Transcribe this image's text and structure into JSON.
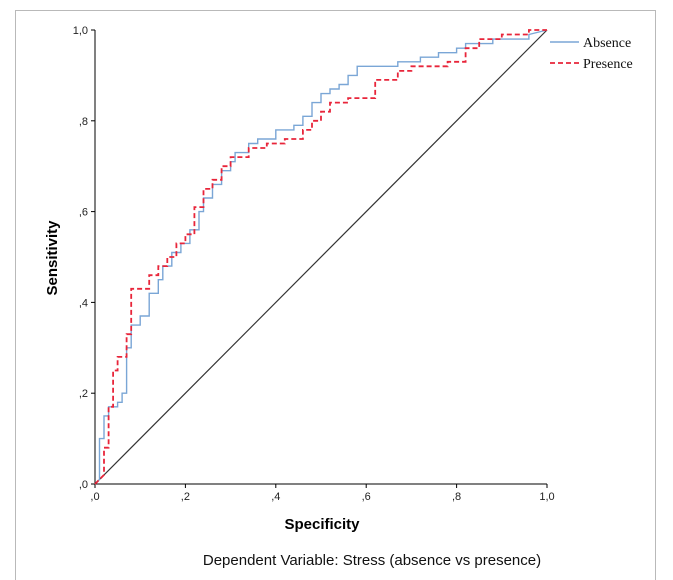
{
  "chart_data": {
    "type": "line",
    "title": "",
    "xlabel": "Specificity",
    "ylabel": "Sensitivity",
    "caption": "Dependent Variable: Stress (absence vs presence)",
    "xlim": [
      0,
      1
    ],
    "ylim": [
      0,
      1
    ],
    "xtick_labels": [
      ",0",
      ",2",
      ",4",
      ",6",
      ",8",
      "1,0"
    ],
    "ytick_labels": [
      ",0",
      ",2",
      ",4",
      ",6",
      ",8",
      "1,0"
    ],
    "tick_values": [
      0,
      0.2,
      0.4,
      0.6,
      0.8,
      1.0
    ],
    "legend_position": "top-right",
    "grid": false,
    "series": [
      {
        "name": "Absence",
        "color": "#7aa6d6",
        "style": "solid",
        "points": [
          [
            0,
            0
          ],
          [
            0.01,
            0.01
          ],
          [
            0.01,
            0.1
          ],
          [
            0.02,
            0.1
          ],
          [
            0.02,
            0.15
          ],
          [
            0.03,
            0.15
          ],
          [
            0.03,
            0.17
          ],
          [
            0.05,
            0.17
          ],
          [
            0.05,
            0.18
          ],
          [
            0.06,
            0.18
          ],
          [
            0.06,
            0.2
          ],
          [
            0.07,
            0.2
          ],
          [
            0.07,
            0.3
          ],
          [
            0.08,
            0.3
          ],
          [
            0.08,
            0.35
          ],
          [
            0.1,
            0.35
          ],
          [
            0.1,
            0.37
          ],
          [
            0.12,
            0.37
          ],
          [
            0.12,
            0.42
          ],
          [
            0.14,
            0.42
          ],
          [
            0.14,
            0.45
          ],
          [
            0.15,
            0.45
          ],
          [
            0.15,
            0.48
          ],
          [
            0.17,
            0.48
          ],
          [
            0.17,
            0.51
          ],
          [
            0.19,
            0.51
          ],
          [
            0.19,
            0.53
          ],
          [
            0.21,
            0.53
          ],
          [
            0.21,
            0.56
          ],
          [
            0.23,
            0.56
          ],
          [
            0.23,
            0.6
          ],
          [
            0.24,
            0.6
          ],
          [
            0.24,
            0.63
          ],
          [
            0.26,
            0.63
          ],
          [
            0.26,
            0.66
          ],
          [
            0.28,
            0.66
          ],
          [
            0.28,
            0.69
          ],
          [
            0.3,
            0.69
          ],
          [
            0.3,
            0.71
          ],
          [
            0.31,
            0.71
          ],
          [
            0.31,
            0.73
          ],
          [
            0.34,
            0.73
          ],
          [
            0.34,
            0.75
          ],
          [
            0.36,
            0.75
          ],
          [
            0.36,
            0.76
          ],
          [
            0.4,
            0.76
          ],
          [
            0.4,
            0.78
          ],
          [
            0.44,
            0.78
          ],
          [
            0.44,
            0.79
          ],
          [
            0.46,
            0.79
          ],
          [
            0.46,
            0.81
          ],
          [
            0.48,
            0.81
          ],
          [
            0.48,
            0.84
          ],
          [
            0.5,
            0.84
          ],
          [
            0.5,
            0.86
          ],
          [
            0.52,
            0.86
          ],
          [
            0.52,
            0.87
          ],
          [
            0.54,
            0.87
          ],
          [
            0.54,
            0.88
          ],
          [
            0.56,
            0.88
          ],
          [
            0.56,
            0.9
          ],
          [
            0.58,
            0.9
          ],
          [
            0.58,
            0.92
          ],
          [
            0.67,
            0.92
          ],
          [
            0.67,
            0.93
          ],
          [
            0.72,
            0.93
          ],
          [
            0.72,
            0.94
          ],
          [
            0.76,
            0.94
          ],
          [
            0.76,
            0.95
          ],
          [
            0.8,
            0.95
          ],
          [
            0.8,
            0.96
          ],
          [
            0.82,
            0.96
          ],
          [
            0.82,
            0.97
          ],
          [
            0.88,
            0.97
          ],
          [
            0.88,
            0.98
          ],
          [
            0.96,
            0.98
          ],
          [
            0.96,
            0.99
          ],
          [
            1.0,
            1.0
          ]
        ]
      },
      {
        "name": "Presence",
        "color": "#e8253a",
        "style": "dashed",
        "points": [
          [
            0,
            0
          ],
          [
            0.02,
            0.02
          ],
          [
            0.02,
            0.08
          ],
          [
            0.03,
            0.08
          ],
          [
            0.03,
            0.17
          ],
          [
            0.04,
            0.17
          ],
          [
            0.04,
            0.25
          ],
          [
            0.05,
            0.25
          ],
          [
            0.05,
            0.28
          ],
          [
            0.07,
            0.28
          ],
          [
            0.07,
            0.33
          ],
          [
            0.08,
            0.33
          ],
          [
            0.08,
            0.43
          ],
          [
            0.12,
            0.43
          ],
          [
            0.12,
            0.46
          ],
          [
            0.14,
            0.46
          ],
          [
            0.14,
            0.48
          ],
          [
            0.16,
            0.48
          ],
          [
            0.16,
            0.5
          ],
          [
            0.18,
            0.5
          ],
          [
            0.18,
            0.53
          ],
          [
            0.2,
            0.53
          ],
          [
            0.2,
            0.55
          ],
          [
            0.22,
            0.55
          ],
          [
            0.22,
            0.61
          ],
          [
            0.24,
            0.61
          ],
          [
            0.24,
            0.65
          ],
          [
            0.26,
            0.65
          ],
          [
            0.26,
            0.67
          ],
          [
            0.28,
            0.67
          ],
          [
            0.28,
            0.7
          ],
          [
            0.3,
            0.7
          ],
          [
            0.3,
            0.72
          ],
          [
            0.34,
            0.72
          ],
          [
            0.34,
            0.74
          ],
          [
            0.38,
            0.74
          ],
          [
            0.38,
            0.75
          ],
          [
            0.42,
            0.75
          ],
          [
            0.42,
            0.76
          ],
          [
            0.46,
            0.76
          ],
          [
            0.46,
            0.78
          ],
          [
            0.48,
            0.78
          ],
          [
            0.48,
            0.8
          ],
          [
            0.5,
            0.8
          ],
          [
            0.5,
            0.82
          ],
          [
            0.52,
            0.82
          ],
          [
            0.52,
            0.84
          ],
          [
            0.56,
            0.84
          ],
          [
            0.56,
            0.85
          ],
          [
            0.62,
            0.85
          ],
          [
            0.62,
            0.89
          ],
          [
            0.67,
            0.89
          ],
          [
            0.67,
            0.91
          ],
          [
            0.7,
            0.91
          ],
          [
            0.7,
            0.92
          ],
          [
            0.78,
            0.92
          ],
          [
            0.78,
            0.93
          ],
          [
            0.82,
            0.93
          ],
          [
            0.82,
            0.96
          ],
          [
            0.85,
            0.96
          ],
          [
            0.85,
            0.98
          ],
          [
            0.9,
            0.98
          ],
          [
            0.9,
            0.99
          ],
          [
            0.96,
            0.99
          ],
          [
            0.96,
            1.0
          ],
          [
            1.0,
            1.0
          ]
        ]
      }
    ],
    "reference_line": {
      "points": [
        [
          0,
          0
        ],
        [
          1,
          1
        ]
      ],
      "color": "#333333"
    }
  }
}
